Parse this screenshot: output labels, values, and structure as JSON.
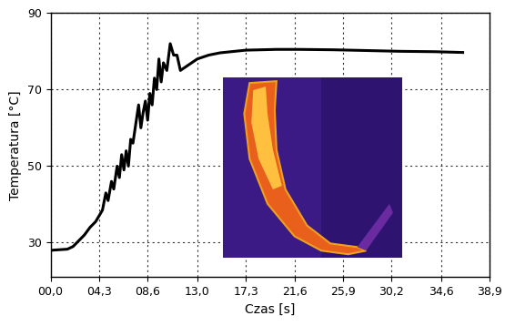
{
  "chart_data": {
    "type": "line",
    "x_label": "Czas [s]",
    "y_label": "Temperatura [°C]",
    "x": [
      0.0,
      1.5,
      2.0,
      2.5,
      3.0,
      3.5,
      4.0,
      4.3,
      4.6,
      4.9,
      5.1,
      5.4,
      5.6,
      5.9,
      6.1,
      6.3,
      6.5,
      6.7,
      6.9,
      7.1,
      7.3,
      7.6,
      7.8,
      8.0,
      8.2,
      8.4,
      8.6,
      8.8,
      9.0,
      9.2,
      9.4,
      9.6,
      9.8,
      10.0,
      10.3,
      10.6,
      10.9,
      11.2,
      11.5,
      12.0,
      13.0,
      14.0,
      15.0,
      17.3,
      20.0,
      22.0,
      25.0,
      28.0,
      31.0,
      34.0,
      36.5
    ],
    "values": [
      28.0,
      28.3,
      29.0,
      30.5,
      32.0,
      34.0,
      35.5,
      37.0,
      38.5,
      43.0,
      41.0,
      46.0,
      44.0,
      50.0,
      47.0,
      53.0,
      49.0,
      54.0,
      50.0,
      57.0,
      56.0,
      62.0,
      66.0,
      60.0,
      64.0,
      67.0,
      62.0,
      69.0,
      66.0,
      73.0,
      70.0,
      78.0,
      72.0,
      77.0,
      75.0,
      82.0,
      79.0,
      79.0,
      75.0,
      76.0,
      78.0,
      79.0,
      79.6,
      80.3,
      80.5,
      80.5,
      80.4,
      80.2,
      80.0,
      79.9,
      79.7
    ],
    "color": "#000000",
    "xlim": [
      0,
      38.9
    ],
    "ylim": [
      21,
      90
    ],
    "xticks": [
      {
        "value": 0,
        "label": "00,0"
      },
      {
        "value": 4.3,
        "label": "04,3"
      },
      {
        "value": 8.6,
        "label": "08,6"
      },
      {
        "value": 13.0,
        "label": "13,0"
      },
      {
        "value": 17.3,
        "label": "17,3"
      },
      {
        "value": 21.6,
        "label": "21,6"
      },
      {
        "value": 25.9,
        "label": "25,9"
      },
      {
        "value": 30.2,
        "label": "30,2"
      },
      {
        "value": 34.6,
        "label": "34,6"
      },
      {
        "value": 38.9,
        "label": "38,9"
      }
    ],
    "yticks": [
      30,
      50,
      70,
      90
    ],
    "grid": true
  }
}
